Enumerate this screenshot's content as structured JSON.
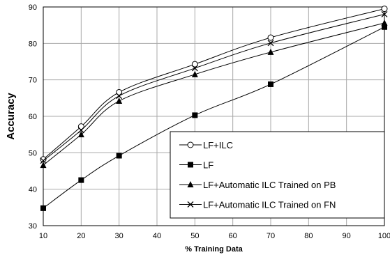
{
  "chart_data": {
    "type": "line",
    "title": "",
    "xlabel": "% Training Data",
    "ylabel": "Accuracy",
    "xlim": [
      10,
      100
    ],
    "ylim": [
      30,
      90
    ],
    "xticks": [
      10,
      20,
      30,
      40,
      50,
      60,
      70,
      80,
      90,
      100
    ],
    "yticks": [
      30,
      40,
      50,
      60,
      70,
      80,
      90
    ],
    "grid": true,
    "legend_position": "bottom-right",
    "x": [
      10,
      20,
      30,
      50,
      70,
      100
    ],
    "series": [
      {
        "name": "LF+ILC",
        "marker": "open-circle",
        "values": [
          48.2,
          57.2,
          66.6,
          74.3,
          81.6,
          89.5
        ]
      },
      {
        "name": "LF",
        "marker": "filled-square",
        "values": [
          34.8,
          42.5,
          49.2,
          60.3,
          68.8,
          84.5
        ]
      },
      {
        "name": "LF+Automatic ILC Trained on PB",
        "marker": "filled-triangle",
        "values": [
          46.6,
          55.0,
          64.2,
          71.5,
          77.6,
          85.6
        ]
      },
      {
        "name": "LF+Automatic ILC Trained on FN",
        "marker": "x-cross",
        "values": [
          47.8,
          56.2,
          65.6,
          73.2,
          80.1,
          88.0
        ]
      }
    ]
  }
}
